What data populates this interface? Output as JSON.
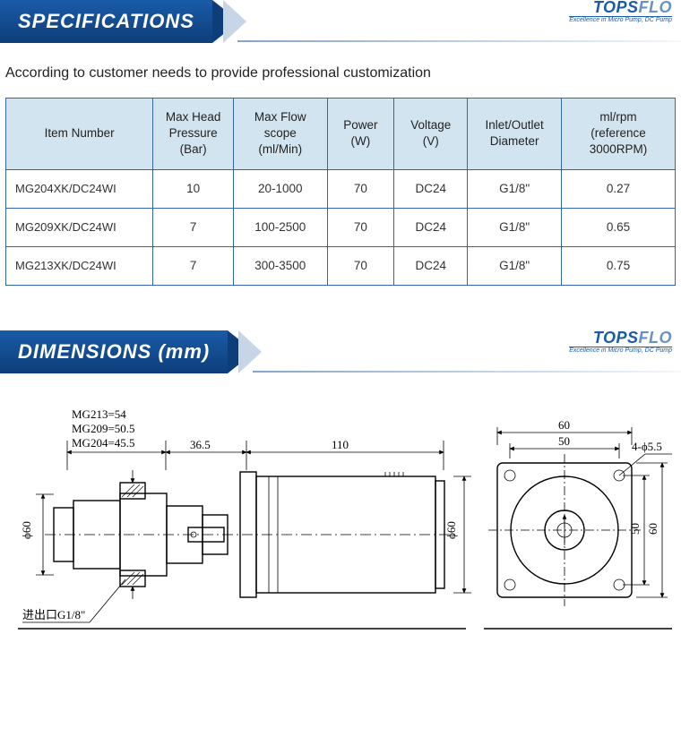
{
  "brand": {
    "name1": "TOPS",
    "name2": "FLO",
    "tagline": "Excellence in Micro Pump, DC Pump"
  },
  "sections": {
    "spec_title": "SPECIFICATIONS",
    "dim_title": "DIMENSIONS (mm)",
    "subtitle": "According to customer needs to provide professional customization"
  },
  "table": {
    "columns": [
      "Item Number",
      "Max Head Pressure (Bar)",
      "Max Flow scope (ml/Min)",
      "Power (W)",
      "Voltage (V)",
      "Inlet/Outlet Diameter",
      "ml/rpm (reference 3000RPM)"
    ],
    "header_bg": "#d2e4f0",
    "border_color": "#3366aa",
    "col_widths_pct": [
      22,
      12,
      14,
      10,
      11,
      14,
      17
    ],
    "rows": [
      [
        "MG204XK/DC24WI",
        "10",
        "20-1000",
        "70",
        "DC24",
        "G1/8\"",
        "0.27"
      ],
      [
        "MG209XK/DC24WI",
        "7",
        "100-2500",
        "70",
        "DC24",
        "G1/8\"",
        "0.65"
      ],
      [
        "MG213XK/DC24WI",
        "7",
        "300-3500",
        "70",
        "DC24",
        "G1/8\"",
        "0.75"
      ]
    ]
  },
  "diagram": {
    "notes": [
      "MG213=54",
      "MG209=50.5",
      "MG204=45.5"
    ],
    "dims": {
      "seg_a": "36.5",
      "seg_b": "110",
      "phi60_left": "ϕ60",
      "phi60_mid": "ϕ60",
      "sq_outer": "60",
      "sq_inner": "50",
      "holes": "4-ϕ5.5",
      "port": "进出口G1/8\""
    },
    "colors": {
      "line": "#000000",
      "bg": "#ffffff"
    }
  }
}
